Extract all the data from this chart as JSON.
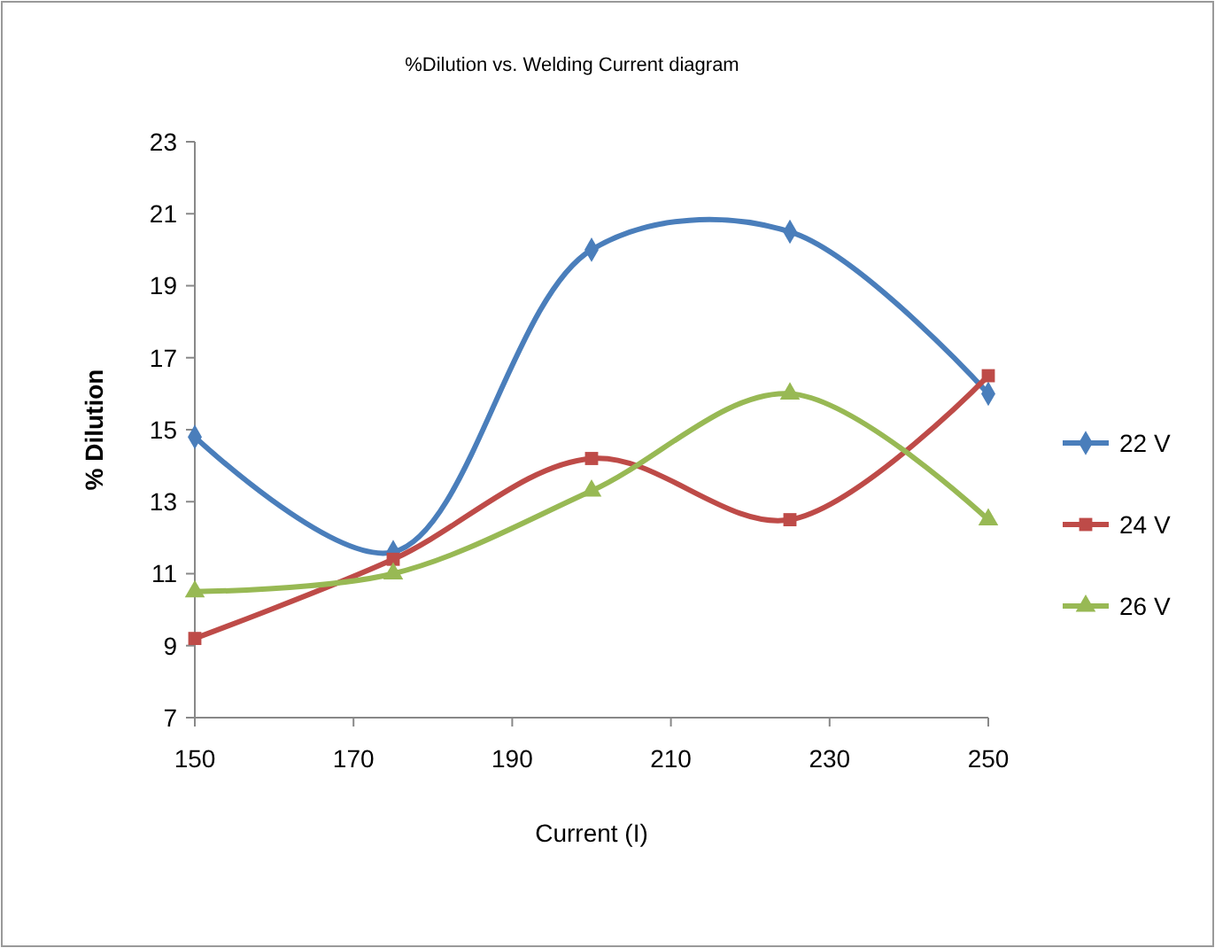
{
  "chart_data": {
    "type": "line",
    "title": "%Dilution vs. Welding Current diagram",
    "xlabel": "Current (I)",
    "ylabel": "% Dilution",
    "x": [
      150,
      175,
      200,
      225,
      250
    ],
    "xlim": [
      150,
      250
    ],
    "xticks": [
      150,
      170,
      190,
      210,
      230,
      250
    ],
    "ylim": [
      7,
      23
    ],
    "yticks": [
      7,
      9,
      11,
      13,
      15,
      17,
      19,
      21,
      23
    ],
    "grid": false,
    "legend": "right",
    "series": [
      {
        "name": "22 V",
        "color": "#4a7ebb",
        "marker": "diamond",
        "values": [
          14.8,
          11.6,
          20,
          20.5,
          16
        ]
      },
      {
        "name": "24 V",
        "color": "#be4b48",
        "marker": "square",
        "values": [
          9.2,
          11.4,
          14.2,
          12.5,
          16.5
        ]
      },
      {
        "name": "26 V",
        "color": "#98b954",
        "marker": "triangle",
        "values": [
          10.5,
          11,
          13.3,
          16,
          12.5
        ]
      }
    ]
  }
}
